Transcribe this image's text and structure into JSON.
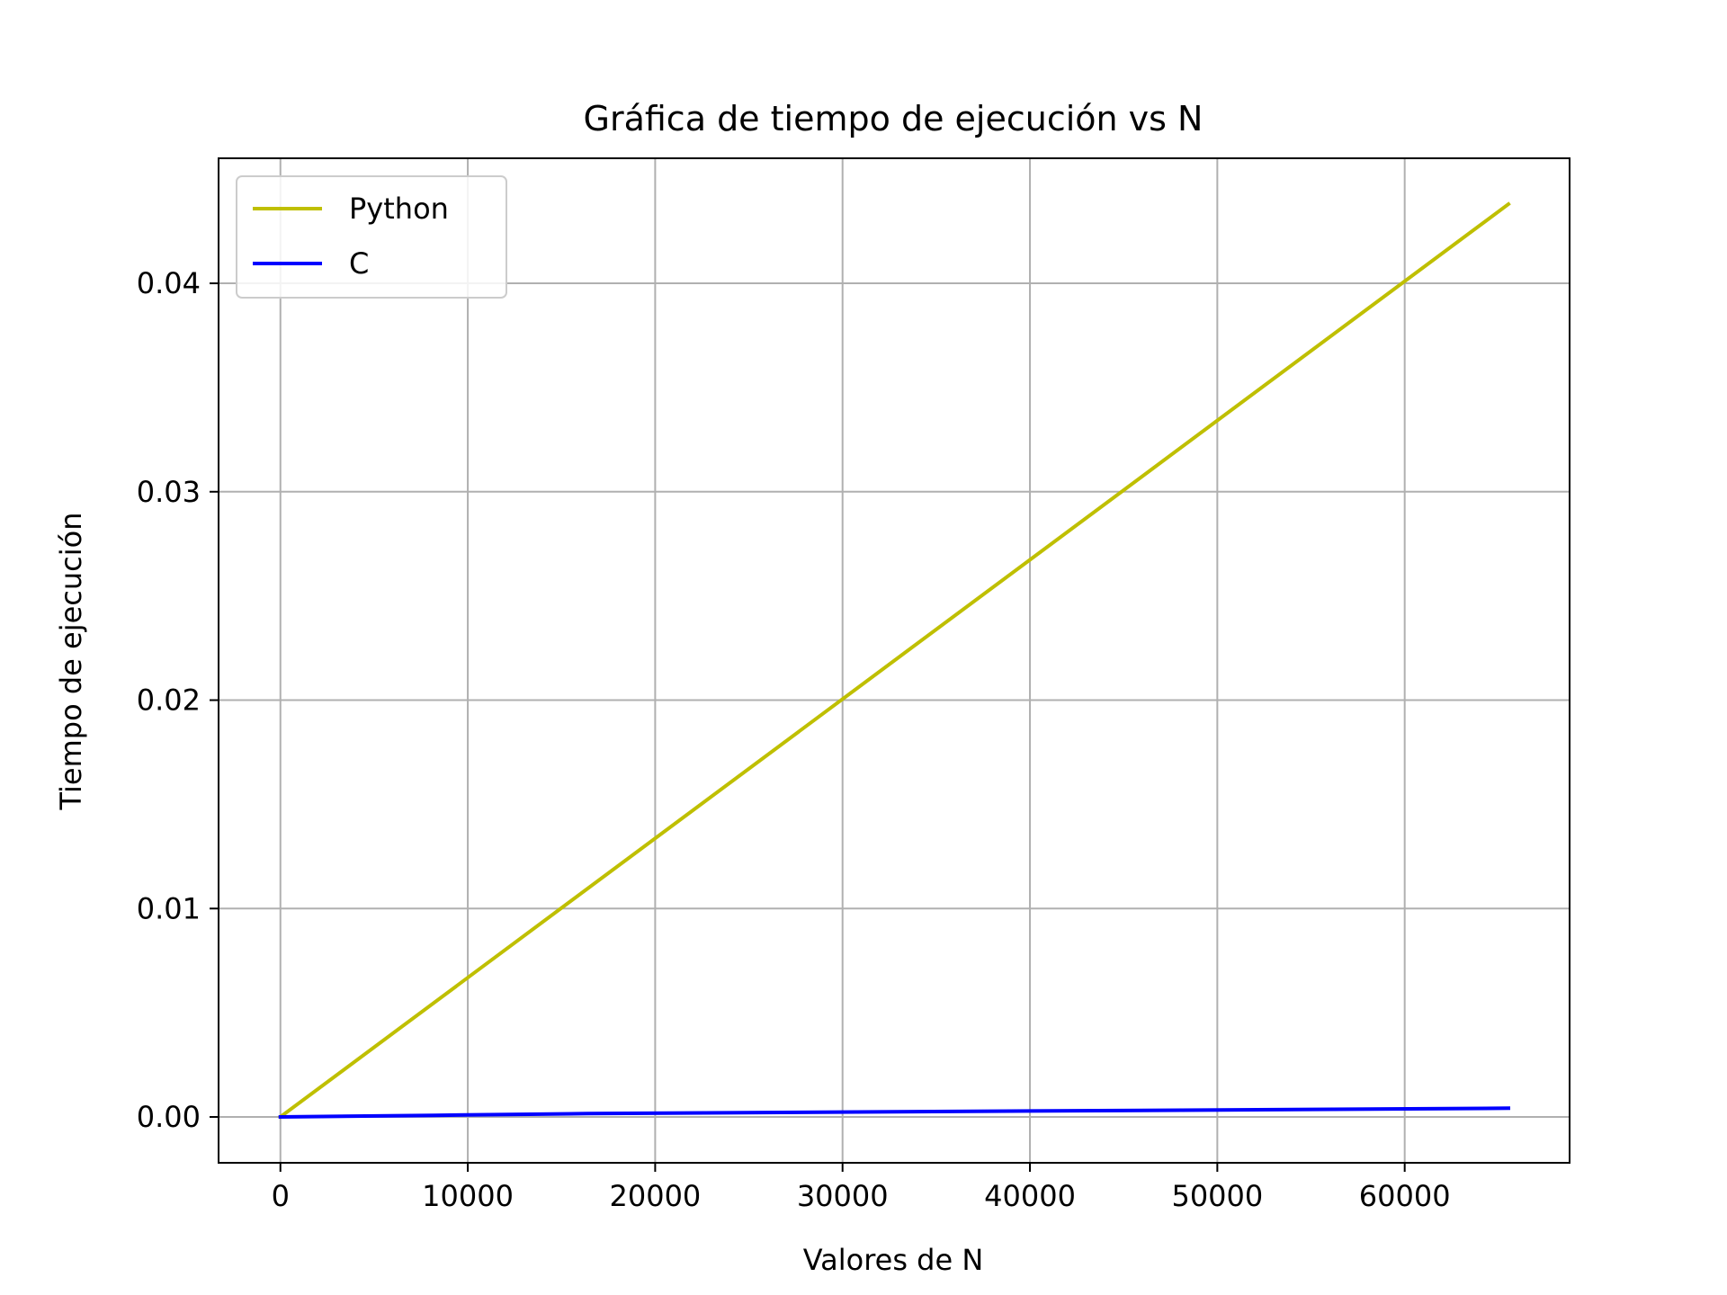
{
  "chart_data": {
    "type": "line",
    "title": "Gráfica de tiempo de ejecución vs N",
    "xlabel": "Valores de N",
    "ylabel": "Tiempo de ejecución",
    "xlim": [
      -3300,
      68800
    ],
    "ylim": [
      -0.0022,
      0.046
    ],
    "xticks": [
      0,
      10000,
      20000,
      30000,
      40000,
      50000,
      60000
    ],
    "xtick_labels": [
      "0",
      "10000",
      "20000",
      "30000",
      "40000",
      "50000",
      "60000"
    ],
    "yticks": [
      0.0,
      0.01,
      0.02,
      0.03,
      0.04
    ],
    "ytick_labels": [
      "0.00",
      "0.01",
      "0.02",
      "0.03",
      "0.04"
    ],
    "grid": true,
    "legend_position": "top-left",
    "series": [
      {
        "name": "Python",
        "color": "#bfbf00",
        "x": [
          0,
          65536
        ],
        "y": [
          0.0,
          0.0438
        ]
      },
      {
        "name": "C",
        "color": "#0000ff",
        "x": [
          0,
          8192,
          16384,
          32768,
          49152,
          65536
        ],
        "y": [
          0.0,
          8e-05,
          0.00016,
          0.00025,
          0.00033,
          0.00042
        ]
      }
    ]
  }
}
